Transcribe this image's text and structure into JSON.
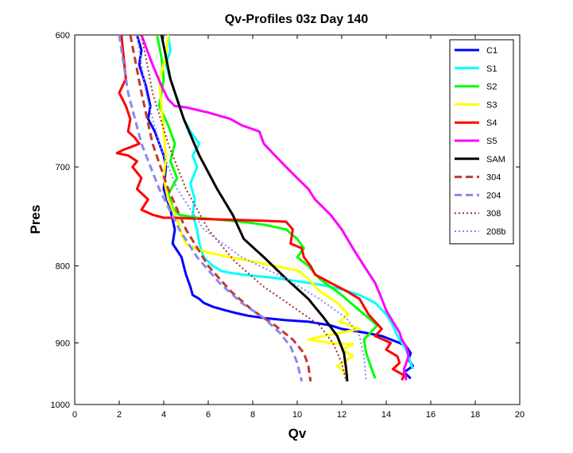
{
  "chart_data": {
    "type": "line",
    "title": "Qv-Profiles 03z Day 140",
    "xlabel": "Qv",
    "ylabel": "Pres",
    "xlim": [
      0,
      20
    ],
    "ylim": [
      600,
      1000
    ],
    "y_scale": "reciprocal",
    "y_inverted": true,
    "x_ticks": [
      "0",
      "2",
      "4",
      "6",
      "8",
      "10",
      "12",
      "14",
      "16",
      "18",
      "20"
    ],
    "y_ticks": [
      "600",
      "700",
      "800",
      "900",
      "1000"
    ],
    "legend_position": "top-right",
    "grid": false,
    "series": [
      {
        "name": "C1",
        "color": "#0000ff",
        "style": "solid",
        "x": [
          2.8,
          3.0,
          2.9,
          3.2,
          3.4,
          3.3,
          3.6,
          4.0,
          4.1,
          4.0,
          4.3,
          4.5,
          4.4,
          4.8,
          4.9,
          5.0,
          5.2,
          5.3,
          5.6,
          5.8,
          6.2,
          6.8,
          7.2,
          7.8,
          8.5,
          9.5,
          10.5,
          11.5,
          12.0,
          13.0,
          13.8,
          14.2,
          14.6,
          14.9,
          15.1,
          15.0,
          15.2,
          14.8,
          15.1
        ],
        "y": [
          600,
          610,
          620,
          635,
          650,
          660,
          670,
          690,
          700,
          720,
          740,
          760,
          775,
          790,
          800,
          810,
          825,
          835,
          840,
          845,
          850,
          855,
          858,
          862,
          865,
          868,
          870,
          875,
          880,
          885,
          890,
          895,
          900,
          905,
          915,
          925,
          935,
          945,
          955
        ]
      },
      {
        "name": "S1",
        "color": "#00ffff",
        "style": "solid",
        "x": [
          4.2,
          4.3,
          4.1,
          4.5,
          4.9,
          5.2,
          5.6,
          5.3,
          5.5,
          5.2,
          5.4,
          5.3,
          5.5,
          5.6,
          5.8,
          6.2,
          6.6,
          7.0,
          7.5,
          8.2,
          9.0,
          10.0,
          11.0,
          12.0,
          12.8,
          13.5,
          14.0,
          14.3,
          14.5,
          14.7,
          14.9,
          15.0,
          15.1,
          15.2
        ],
        "y": [
          600,
          610,
          620,
          640,
          660,
          670,
          680,
          690,
          700,
          715,
          730,
          745,
          760,
          775,
          790,
          800,
          806,
          808,
          810,
          812,
          814,
          818,
          822,
          828,
          835,
          845,
          860,
          875,
          890,
          900,
          910,
          920,
          930,
          940
        ]
      },
      {
        "name": "S2",
        "color": "#00ff00",
        "style": "solid",
        "x": [
          3.7,
          3.9,
          4.0,
          3.8,
          4.2,
          4.5,
          4.3,
          4.6,
          4.2,
          4.4,
          4.7,
          5.5,
          6.5,
          7.5,
          8.5,
          9.5,
          10.0,
          10.3,
          10.0,
          10.5,
          11.0,
          11.5,
          12.0,
          12.4,
          12.8,
          13.2,
          13.6,
          13.3,
          13.0,
          13.1,
          13.3,
          13.5
        ],
        "y": [
          600,
          615,
          630,
          650,
          665,
          680,
          695,
          710,
          725,
          738,
          745,
          748,
          750,
          752,
          755,
          760,
          770,
          780,
          790,
          800,
          815,
          825,
          835,
          845,
          855,
          865,
          875,
          885,
          895,
          915,
          935,
          955
        ]
      },
      {
        "name": "S3",
        "color": "#ffff00",
        "style": "solid",
        "x": [
          4.2,
          4.1,
          3.8,
          3.9,
          4.0,
          4.1,
          4.0,
          4.2,
          4.5,
          4.7,
          4.8,
          5.0,
          5.4,
          6.0,
          7.0,
          8.0,
          9.0,
          10.0,
          10.5,
          11.0,
          11.8,
          12.3,
          11.9,
          12.8,
          12.0,
          11.2,
          10.5,
          11.5,
          12.5,
          12.0,
          12.5,
          11.8,
          12.3
        ],
        "y": [
          600,
          615,
          630,
          650,
          670,
          690,
          710,
          730,
          745,
          755,
          765,
          775,
          780,
          785,
          790,
          795,
          800,
          805,
          815,
          830,
          845,
          860,
          870,
          880,
          885,
          890,
          895,
          900,
          902,
          910,
          920,
          935,
          950
        ]
      },
      {
        "name": "S4",
        "color": "#ff0000",
        "style": "solid",
        "x": [
          2.1,
          2.2,
          2.3,
          2.0,
          2.3,
          2.5,
          2.4,
          2.7,
          2.9,
          2.5,
          2.2,
          1.9,
          2.4,
          2.8,
          2.6,
          3.0,
          2.8,
          3.3,
          3.0,
          3.5,
          4.0,
          4.5,
          5.5,
          7.0,
          8.5,
          9.5,
          9.8,
          9.7,
          10.2,
          10.3,
          10.6,
          10.8,
          11.5,
          12.2,
          12.8,
          13.2,
          13.5,
          13.8,
          13.5,
          14.2,
          14.0,
          14.5,
          14.6,
          14.3,
          14.8,
          14.7
        ],
        "y": [
          600,
          615,
          630,
          640,
          650,
          660,
          670,
          675,
          680,
          683,
          685,
          688,
          690,
          695,
          700,
          710,
          720,
          730,
          740,
          745,
          748,
          748,
          749,
          750,
          751,
          752,
          760,
          775,
          780,
          790,
          800,
          810,
          820,
          830,
          840,
          860,
          870,
          880,
          890,
          900,
          910,
          920,
          930,
          940,
          950,
          958
        ]
      },
      {
        "name": "S5",
        "color": "#ff00ff",
        "style": "solid",
        "x": [
          3.0,
          3.5,
          3.9,
          4.2,
          4.5,
          5.0,
          6.0,
          7.0,
          7.5,
          8.3,
          8.5,
          9.0,
          9.5,
          10.0,
          10.5,
          10.8,
          11.5,
          12.0,
          12.5,
          13.0,
          13.5,
          13.8,
          14.0,
          14.2,
          14.4,
          14.6,
          14.7,
          14.9,
          15.0,
          14.8,
          14.9
        ],
        "y": [
          600,
          620,
          635,
          645,
          650,
          651,
          655,
          660,
          665,
          670,
          680,
          690,
          700,
          710,
          720,
          730,
          745,
          760,
          780,
          800,
          820,
          840,
          855,
          865,
          875,
          885,
          895,
          905,
          920,
          940,
          958
        ]
      },
      {
        "name": "SAM",
        "color": "#000000",
        "style": "solid",
        "x": [
          3.9,
          4.3,
          4.9,
          5.6,
          6.4,
          7.1,
          7.6,
          8.5,
          9.5,
          10.5,
          11.2,
          11.8,
          12.1,
          12.2,
          12.25
        ],
        "y": [
          600,
          630,
          660,
          690,
          720,
          745,
          770,
          790,
          815,
          840,
          865,
          890,
          915,
          940,
          960
        ]
      },
      {
        "name": "304",
        "color": "#c0392b",
        "style": "dashed",
        "x": [
          2.5,
          3.0,
          3.5,
          4.2,
          5.0,
          6.0,
          7.0,
          8.0,
          9.0,
          9.8,
          10.3,
          10.5,
          10.6
        ],
        "y": [
          600,
          640,
          680,
          720,
          760,
          800,
          830,
          855,
          875,
          895,
          915,
          935,
          960
        ]
      },
      {
        "name": "204",
        "color": "#8888ee",
        "style": "dashed",
        "x": [
          2.0,
          2.4,
          3.0,
          3.8,
          4.7,
          5.5,
          6.5,
          7.5,
          8.5,
          9.2,
          9.7,
          10.0,
          10.2
        ],
        "y": [
          600,
          640,
          680,
          720,
          760,
          790,
          820,
          845,
          865,
          885,
          905,
          930,
          960
        ]
      },
      {
        "name": "308",
        "color": "#a03030",
        "style": "dotted",
        "x": [
          3.0,
          3.5,
          4.2,
          5.0,
          6.0,
          7.2,
          8.5,
          9.8,
          11.0,
          11.6,
          12.0,
          12.2
        ],
        "y": [
          600,
          640,
          680,
          720,
          760,
          795,
          825,
          850,
          875,
          900,
          930,
          960
        ]
      },
      {
        "name": "208b",
        "color": "#8888ee",
        "style": "dotted",
        "x": [
          2.8,
          3.2,
          3.8,
          4.6,
          5.8,
          7.5,
          9.5,
          11.0,
          12.2,
          12.8,
          13.0,
          13.1
        ],
        "y": [
          600,
          640,
          680,
          720,
          760,
          790,
          815,
          840,
          865,
          890,
          920,
          960
        ]
      }
    ]
  }
}
